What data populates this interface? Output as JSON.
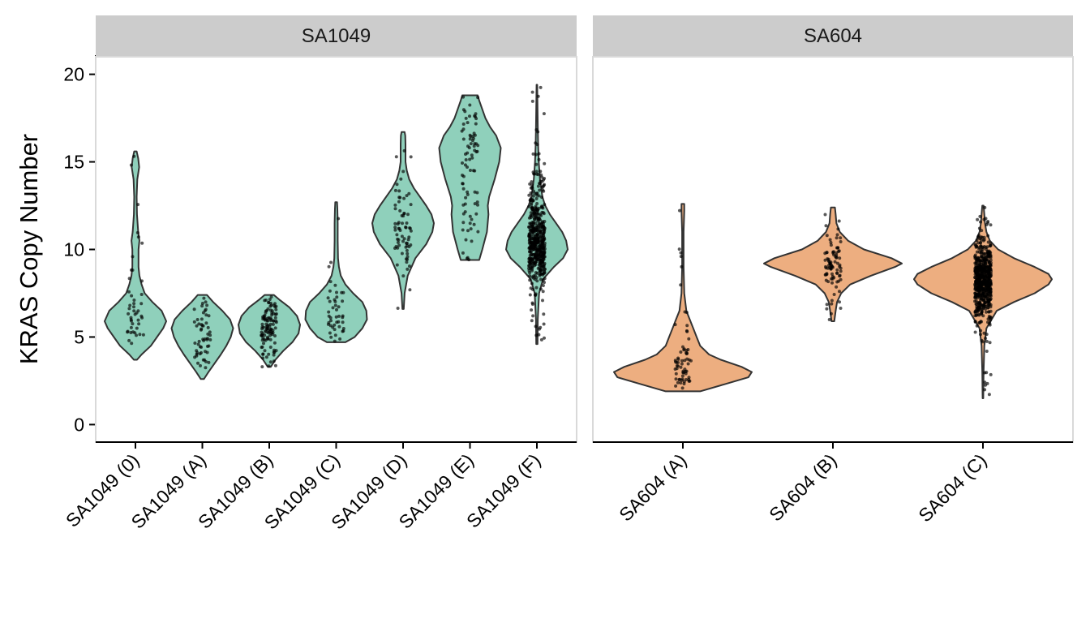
{
  "chart_data": {
    "type": "violin",
    "ylabel": "KRAS Copy Number",
    "ylim": [
      -1,
      21
    ],
    "yticks": [
      0,
      5,
      10,
      15,
      20
    ],
    "colors": {
      "SA1049": "#8fd0bb",
      "SA604": "#edae80",
      "outline": "#333333",
      "points": "#000000",
      "strip": "#cccccc"
    },
    "panels": [
      {
        "name": "SA1049",
        "groups": [
          {
            "label": "SA1049 (0)",
            "min": 3.7,
            "max": 15.6,
            "n": 45,
            "density": [
              [
                3.7,
                0.05
              ],
              [
                4.0,
                0.2
              ],
              [
                4.5,
                0.5
              ],
              [
                5.0,
                0.7
              ],
              [
                5.5,
                0.9
              ],
              [
                5.9,
                1.0
              ],
              [
                6.5,
                0.85
              ],
              [
                7.0,
                0.55
              ],
              [
                7.5,
                0.3
              ],
              [
                8.0,
                0.2
              ],
              [
                8.5,
                0.13
              ],
              [
                9.0,
                0.1
              ],
              [
                10.0,
                0.1
              ],
              [
                10.5,
                0.13
              ],
              [
                11.0,
                0.09
              ],
              [
                12.0,
                0.05
              ],
              [
                13.0,
                0.04
              ],
              [
                14.0,
                0.06
              ],
              [
                14.7,
                0.12
              ],
              [
                15.2,
                0.09
              ],
              [
                15.6,
                0.04
              ]
            ]
          },
          {
            "label": "SA1049 (A)",
            "min": 2.6,
            "max": 7.4,
            "n": 55,
            "density": [
              [
                2.6,
                0.05
              ],
              [
                3.0,
                0.2
              ],
              [
                3.5,
                0.4
              ],
              [
                4.0,
                0.6
              ],
              [
                4.5,
                0.78
              ],
              [
                5.0,
                0.92
              ],
              [
                5.5,
                1.0
              ],
              [
                6.0,
                0.9
              ],
              [
                6.5,
                0.65
              ],
              [
                7.0,
                0.35
              ],
              [
                7.4,
                0.15
              ]
            ]
          },
          {
            "label": "SA1049 (B)",
            "min": 3.3,
            "max": 7.4,
            "n": 110,
            "density": [
              [
                3.3,
                0.05
              ],
              [
                3.7,
                0.2
              ],
              [
                4.2,
                0.45
              ],
              [
                4.7,
                0.75
              ],
              [
                5.2,
                0.95
              ],
              [
                5.7,
                1.0
              ],
              [
                6.2,
                0.9
              ],
              [
                6.7,
                0.65
              ],
              [
                7.1,
                0.35
              ],
              [
                7.4,
                0.15
              ]
            ]
          },
          {
            "label": "SA1049 (C)",
            "min": 4.7,
            "max": 12.7,
            "n": 45,
            "density": [
              [
                4.7,
                0.3
              ],
              [
                5.0,
                0.6
              ],
              [
                5.5,
                0.85
              ],
              [
                6.0,
                1.0
              ],
              [
                6.5,
                0.98
              ],
              [
                7.0,
                0.85
              ],
              [
                7.5,
                0.55
              ],
              [
                8.0,
                0.3
              ],
              [
                8.5,
                0.15
              ],
              [
                9.0,
                0.09
              ],
              [
                9.5,
                0.06
              ],
              [
                10.5,
                0.05
              ],
              [
                11.5,
                0.05
              ],
              [
                12.3,
                0.04
              ],
              [
                12.7,
                0.03
              ]
            ]
          },
          {
            "label": "SA1049 (D)",
            "min": 6.6,
            "max": 16.7,
            "n": 70,
            "density": [
              [
                6.6,
                0.02
              ],
              [
                7.5,
                0.05
              ],
              [
                8.5,
                0.15
              ],
              [
                9.5,
                0.4
              ],
              [
                10.3,
                0.75
              ],
              [
                11.0,
                0.95
              ],
              [
                11.5,
                1.0
              ],
              [
                12.0,
                0.92
              ],
              [
                12.5,
                0.75
              ],
              [
                13.0,
                0.55
              ],
              [
                13.5,
                0.35
              ],
              [
                14.0,
                0.2
              ],
              [
                14.5,
                0.12
              ],
              [
                15.0,
                0.08
              ],
              [
                15.5,
                0.08
              ],
              [
                16.0,
                0.08
              ],
              [
                16.5,
                0.07
              ],
              [
                16.7,
                0.05
              ]
            ]
          },
          {
            "label": "SA1049 (E)",
            "min": 9.4,
            "max": 18.8,
            "n": 80,
            "density": [
              [
                9.4,
                0.3
              ],
              [
                10.0,
                0.4
              ],
              [
                11.0,
                0.55
              ],
              [
                12.0,
                0.6
              ],
              [
                12.5,
                0.58
              ],
              [
                13.0,
                0.62
              ],
              [
                14.0,
                0.8
              ],
              [
                15.0,
                0.95
              ],
              [
                15.8,
                1.0
              ],
              [
                16.5,
                0.85
              ],
              [
                17.0,
                0.65
              ],
              [
                17.5,
                0.5
              ],
              [
                18.0,
                0.4
              ],
              [
                18.5,
                0.3
              ],
              [
                18.8,
                0.25
              ]
            ]
          },
          {
            "label": "SA1049 (F)",
            "min": 4.6,
            "max": 19.4,
            "n": 520,
            "density": [
              [
                4.6,
                0.02
              ],
              [
                6.0,
                0.03
              ],
              [
                7.5,
                0.07
              ],
              [
                8.3,
                0.2
              ],
              [
                9.0,
                0.55
              ],
              [
                9.5,
                0.85
              ],
              [
                10.0,
                1.0
              ],
              [
                10.5,
                0.95
              ],
              [
                11.0,
                0.82
              ],
              [
                11.5,
                0.62
              ],
              [
                12.0,
                0.42
              ],
              [
                12.5,
                0.27
              ],
              [
                13.0,
                0.18
              ],
              [
                14.0,
                0.1
              ],
              [
                15.0,
                0.06
              ],
              [
                16.0,
                0.04
              ],
              [
                17.0,
                0.03
              ],
              [
                18.0,
                0.02
              ],
              [
                19.4,
                0.01
              ]
            ]
          }
        ]
      },
      {
        "name": "SA604",
        "groups": [
          {
            "label": "SA604 (A)",
            "min": 1.9,
            "max": 12.6,
            "n": 65,
            "density": [
              [
                1.9,
                0.25
              ],
              [
                2.3,
                0.6
              ],
              [
                2.7,
                0.95
              ],
              [
                3.0,
                1.0
              ],
              [
                3.3,
                0.85
              ],
              [
                3.7,
                0.55
              ],
              [
                4.0,
                0.38
              ],
              [
                4.5,
                0.25
              ],
              [
                5.0,
                0.2
              ],
              [
                5.5,
                0.15
              ],
              [
                6.0,
                0.1
              ],
              [
                6.5,
                0.05
              ],
              [
                7.5,
                0.02
              ],
              [
                9.0,
                0.01
              ],
              [
                11.0,
                0.01
              ],
              [
                12.2,
                0.02
              ],
              [
                12.6,
                0.02
              ]
            ]
          },
          {
            "label": "SA604 (B)",
            "min": 5.9,
            "max": 12.4,
            "n": 90,
            "density": [
              [
                5.9,
                0.02
              ],
              [
                6.5,
                0.04
              ],
              [
                7.0,
                0.06
              ],
              [
                7.5,
                0.12
              ],
              [
                8.0,
                0.25
              ],
              [
                8.5,
                0.55
              ],
              [
                9.0,
                0.9
              ],
              [
                9.2,
                1.0
              ],
              [
                9.5,
                0.85
              ],
              [
                10.0,
                0.45
              ],
              [
                10.5,
                0.22
              ],
              [
                11.0,
                0.1
              ],
              [
                11.5,
                0.05
              ],
              [
                12.0,
                0.04
              ],
              [
                12.4,
                0.03
              ]
            ]
          },
          {
            "label": "SA604 (C)",
            "min": 1.5,
            "max": 12.5,
            "n": 650,
            "density": [
              [
                1.5,
                0.005
              ],
              [
                3.0,
                0.01
              ],
              [
                4.5,
                0.02
              ],
              [
                5.5,
                0.05
              ],
              [
                6.5,
                0.2
              ],
              [
                7.0,
                0.45
              ],
              [
                7.5,
                0.75
              ],
              [
                8.0,
                0.95
              ],
              [
                8.3,
                1.0
              ],
              [
                8.6,
                0.95
              ],
              [
                9.0,
                0.75
              ],
              [
                9.5,
                0.45
              ],
              [
                10.0,
                0.22
              ],
              [
                10.5,
                0.1
              ],
              [
                11.0,
                0.05
              ],
              [
                11.5,
                0.03
              ],
              [
                12.0,
                0.02
              ],
              [
                12.5,
                0.01
              ]
            ]
          }
        ]
      }
    ]
  }
}
